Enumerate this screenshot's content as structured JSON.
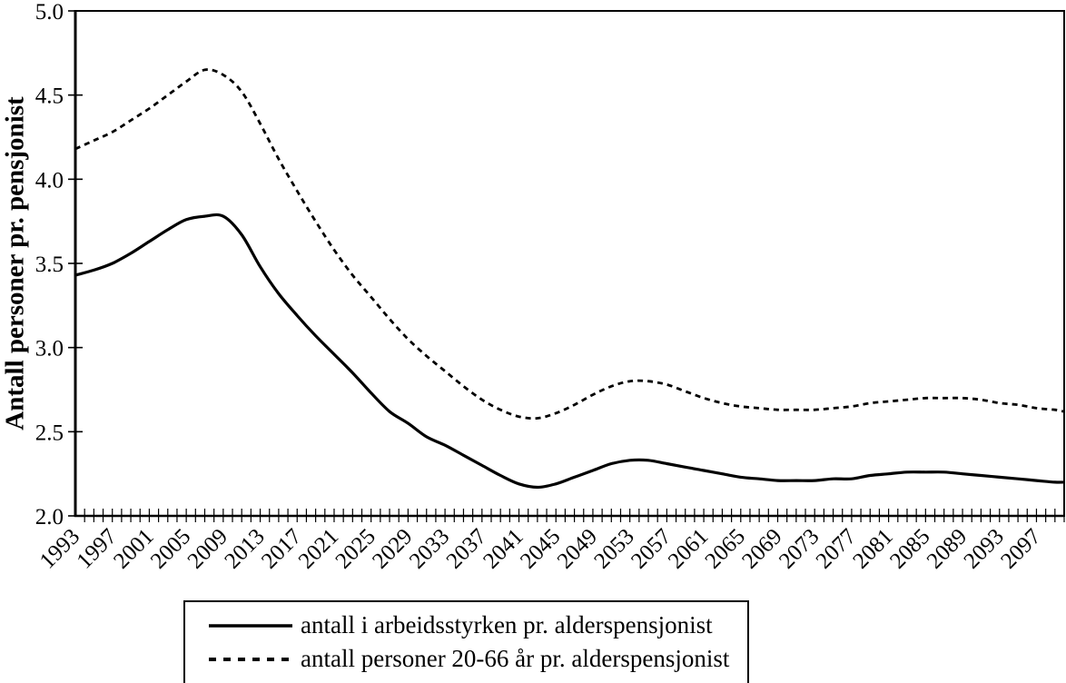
{
  "page": {
    "background": "#ffffff"
  },
  "colors": {
    "line": "#000000",
    "text": "#000000",
    "frame": "#000000"
  },
  "chart_data": {
    "type": "line",
    "title": "",
    "ylabel": "Antall personer pr. pensjonist",
    "xlabel": "",
    "ylim": [
      2.0,
      5.0
    ],
    "yticks": [
      2.0,
      2.5,
      3.0,
      3.5,
      4.0,
      4.5,
      5.0
    ],
    "ytick_labels": [
      "2.0",
      "2.5",
      "3.0",
      "3.5",
      "4.0",
      "4.5",
      "5.0"
    ],
    "x_axis_range": [
      1993,
      2100
    ],
    "xtick_minor_step": 1,
    "xtick_label_years": [
      1993,
      1997,
      2001,
      2005,
      2009,
      2013,
      2017,
      2021,
      2025,
      2029,
      2033,
      2037,
      2041,
      2045,
      2049,
      2053,
      2057,
      2061,
      2065,
      2069,
      2073,
      2077,
      2081,
      2085,
      2089,
      2093,
      2097
    ],
    "grid": false,
    "legend_position": "bottom",
    "x_years": [
      1993,
      1995,
      1997,
      1999,
      2001,
      2003,
      2005,
      2007,
      2009,
      2011,
      2013,
      2015,
      2017,
      2019,
      2021,
      2023,
      2025,
      2027,
      2029,
      2031,
      2033,
      2035,
      2037,
      2039,
      2041,
      2043,
      2045,
      2047,
      2049,
      2051,
      2053,
      2055,
      2057,
      2059,
      2061,
      2063,
      2065,
      2067,
      2069,
      2071,
      2073,
      2075,
      2077,
      2079,
      2081,
      2083,
      2085,
      2087,
      2089,
      2091,
      2093,
      2095,
      2097,
      2099,
      2100
    ],
    "series": [
      {
        "name": "antall i arbeidsstyrken pr. alderspensjonist",
        "style": "solid",
        "values": [
          3.43,
          3.46,
          3.5,
          3.56,
          3.63,
          3.7,
          3.76,
          3.78,
          3.78,
          3.67,
          3.48,
          3.32,
          3.19,
          3.07,
          2.96,
          2.85,
          2.73,
          2.62,
          2.55,
          2.47,
          2.42,
          2.36,
          2.3,
          2.24,
          2.19,
          2.17,
          2.19,
          2.23,
          2.27,
          2.31,
          2.33,
          2.33,
          2.31,
          2.29,
          2.27,
          2.25,
          2.23,
          2.22,
          2.21,
          2.21,
          2.21,
          2.22,
          2.22,
          2.24,
          2.25,
          2.26,
          2.26,
          2.26,
          2.25,
          2.24,
          2.23,
          2.22,
          2.21,
          2.2,
          2.2
        ]
      },
      {
        "name": "antall personer 20-66 år pr. alderspensjonist",
        "style": "dashed",
        "values": [
          4.18,
          4.23,
          4.28,
          4.35,
          4.42,
          4.5,
          4.58,
          4.65,
          4.62,
          4.52,
          4.33,
          4.12,
          3.93,
          3.75,
          3.58,
          3.43,
          3.3,
          3.17,
          3.05,
          2.95,
          2.86,
          2.77,
          2.69,
          2.63,
          2.59,
          2.58,
          2.61,
          2.66,
          2.72,
          2.77,
          2.8,
          2.8,
          2.78,
          2.74,
          2.7,
          2.67,
          2.65,
          2.64,
          2.63,
          2.63,
          2.63,
          2.64,
          2.65,
          2.67,
          2.68,
          2.69,
          2.7,
          2.7,
          2.7,
          2.69,
          2.67,
          2.66,
          2.64,
          2.63,
          2.62
        ]
      }
    ]
  }
}
